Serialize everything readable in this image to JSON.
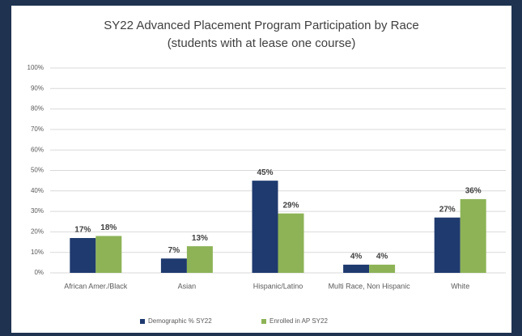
{
  "chart_data": {
    "type": "bar",
    "title": "SY22 Advanced Placement Program Participation by Race",
    "subtitle": "(students with at lease one course)",
    "categories": [
      "African Amer./Black",
      "Asian",
      "Hispanic/Latino",
      "Multi Race, Non Hispanic",
      "White"
    ],
    "series": [
      {
        "name": "Demographic % SY22",
        "color": "#1f3a6e",
        "values": [
          17,
          7,
          45,
          4,
          27
        ],
        "value_labels": [
          "17%",
          "7%",
          "45%",
          "4%",
          "27%"
        ]
      },
      {
        "name": "Enrolled in AP SY22",
        "color": "#8db356",
        "values": [
          18,
          13,
          29,
          4,
          36
        ],
        "value_labels": [
          "18%",
          "13%",
          "29%",
          "4%",
          "36%"
        ]
      }
    ],
    "ylim": [
      0,
      100
    ],
    "yticks": [
      {
        "value": 0,
        "label": "0%"
      },
      {
        "value": 10,
        "label": "10%"
      },
      {
        "value": 20,
        "label": "20%"
      },
      {
        "value": 30,
        "label": "30%"
      },
      {
        "value": 40,
        "label": "40%"
      },
      {
        "value": 50,
        "label": "50%"
      },
      {
        "value": 60,
        "label": "60%"
      },
      {
        "value": 70,
        "label": "70%"
      },
      {
        "value": 80,
        "label": "80%"
      },
      {
        "value": 90,
        "label": "90%"
      },
      {
        "value": 100,
        "label": "100%"
      }
    ],
    "grid": true,
    "legend": "bottom"
  }
}
